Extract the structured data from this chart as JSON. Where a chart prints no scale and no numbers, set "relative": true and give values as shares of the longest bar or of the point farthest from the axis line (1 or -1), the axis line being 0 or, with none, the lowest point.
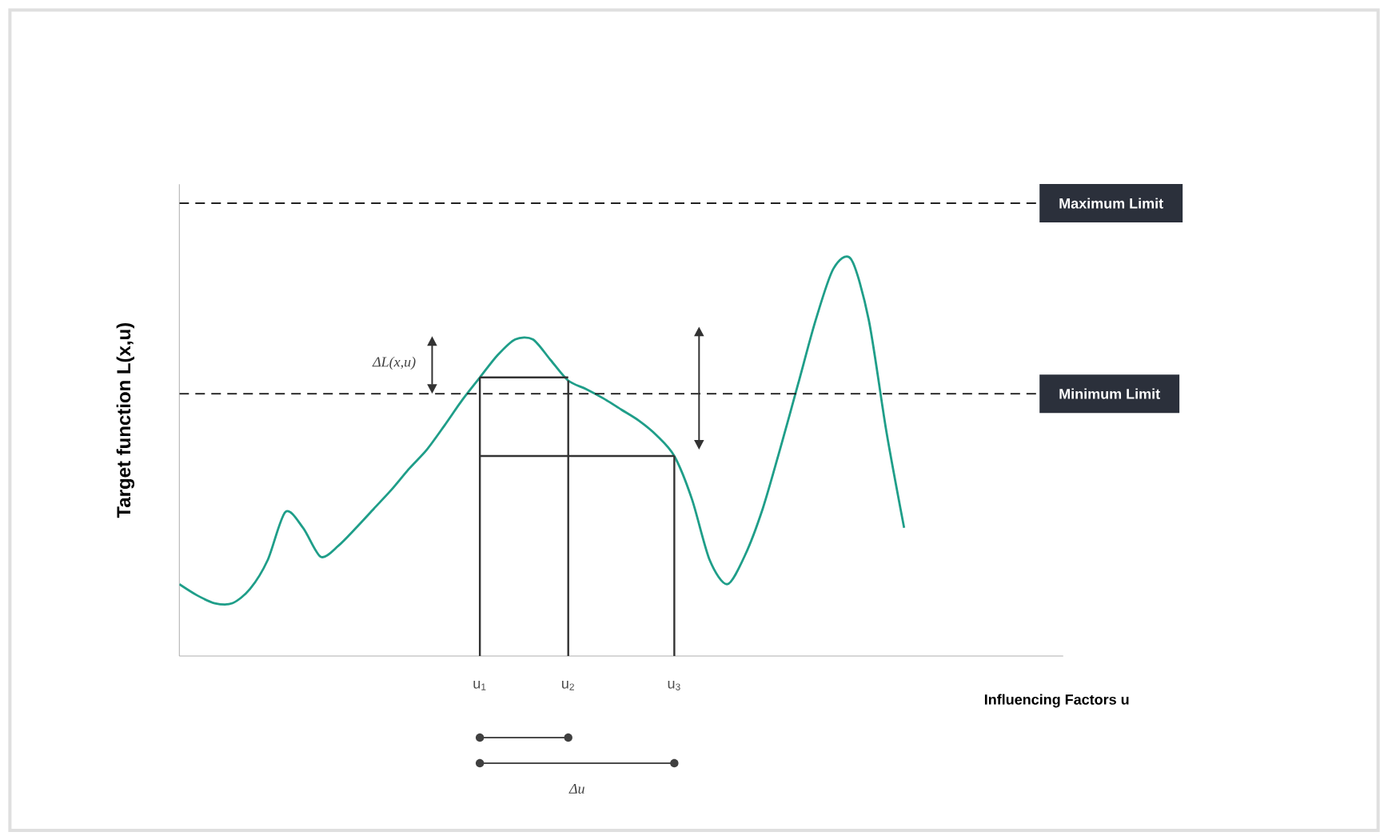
{
  "chart_data": {
    "type": "line",
    "relative": true,
    "xlabel": "Influencing Factors u",
    "ylabel": "Target function L(x,u)",
    "categories": [
      null,
      null,
      null,
      null,
      null,
      null,
      null,
      null,
      null,
      null,
      null,
      null,
      null,
      null,
      null,
      null,
      null,
      "u$_{1}$",
      null,
      null,
      null,
      null,
      "u$_{2}$",
      null,
      null,
      null,
      null,
      null,
      "u$_{3}$",
      null,
      null,
      null,
      null,
      null,
      null,
      null,
      null,
      null,
      null,
      null,
      null,
      null,
      null,
      null,
      null,
      null,
      null,
      null,
      null,
      null,
      null
    ],
    "series": [
      {
        "color": "#1f9e89",
        "values": [
          0.181,
          0.153,
          0.133,
          0.133,
          0.169,
          0.242,
          0.363,
          0.323,
          0.25,
          0.278,
          0.323,
          0.371,
          0.419,
          0.472,
          0.52,
          0.581,
          0.645,
          0.702,
          0.758,
          0.798,
          0.798,
          0.746,
          0.694,
          0.673,
          0.649,
          0.621,
          0.593,
          0.556,
          0.504,
          0.395,
          0.242,
          0.181,
          0.254,
          0.371,
          0.524,
          0.685,
          0.847,
          0.976,
          1.0,
          0.847,
          0.565,
          0.323,
          null,
          null,
          null,
          null,
          null,
          null,
          null,
          null,
          null
        ]
      }
    ],
    "ref_lines": [
      {
        "axis": "y",
        "value": 1.141,
        "label": "Maximum Limit",
        "color": "#222222",
        "line_style": "dashed"
      },
      {
        "axis": "y",
        "value": 0.661,
        "label": "Minimum Limit",
        "color": "#222222",
        "line_style": "dashed"
      }
    ],
    "annotations": [
      "ΔL(x,u)",
      "Δu"
    ]
  }
}
